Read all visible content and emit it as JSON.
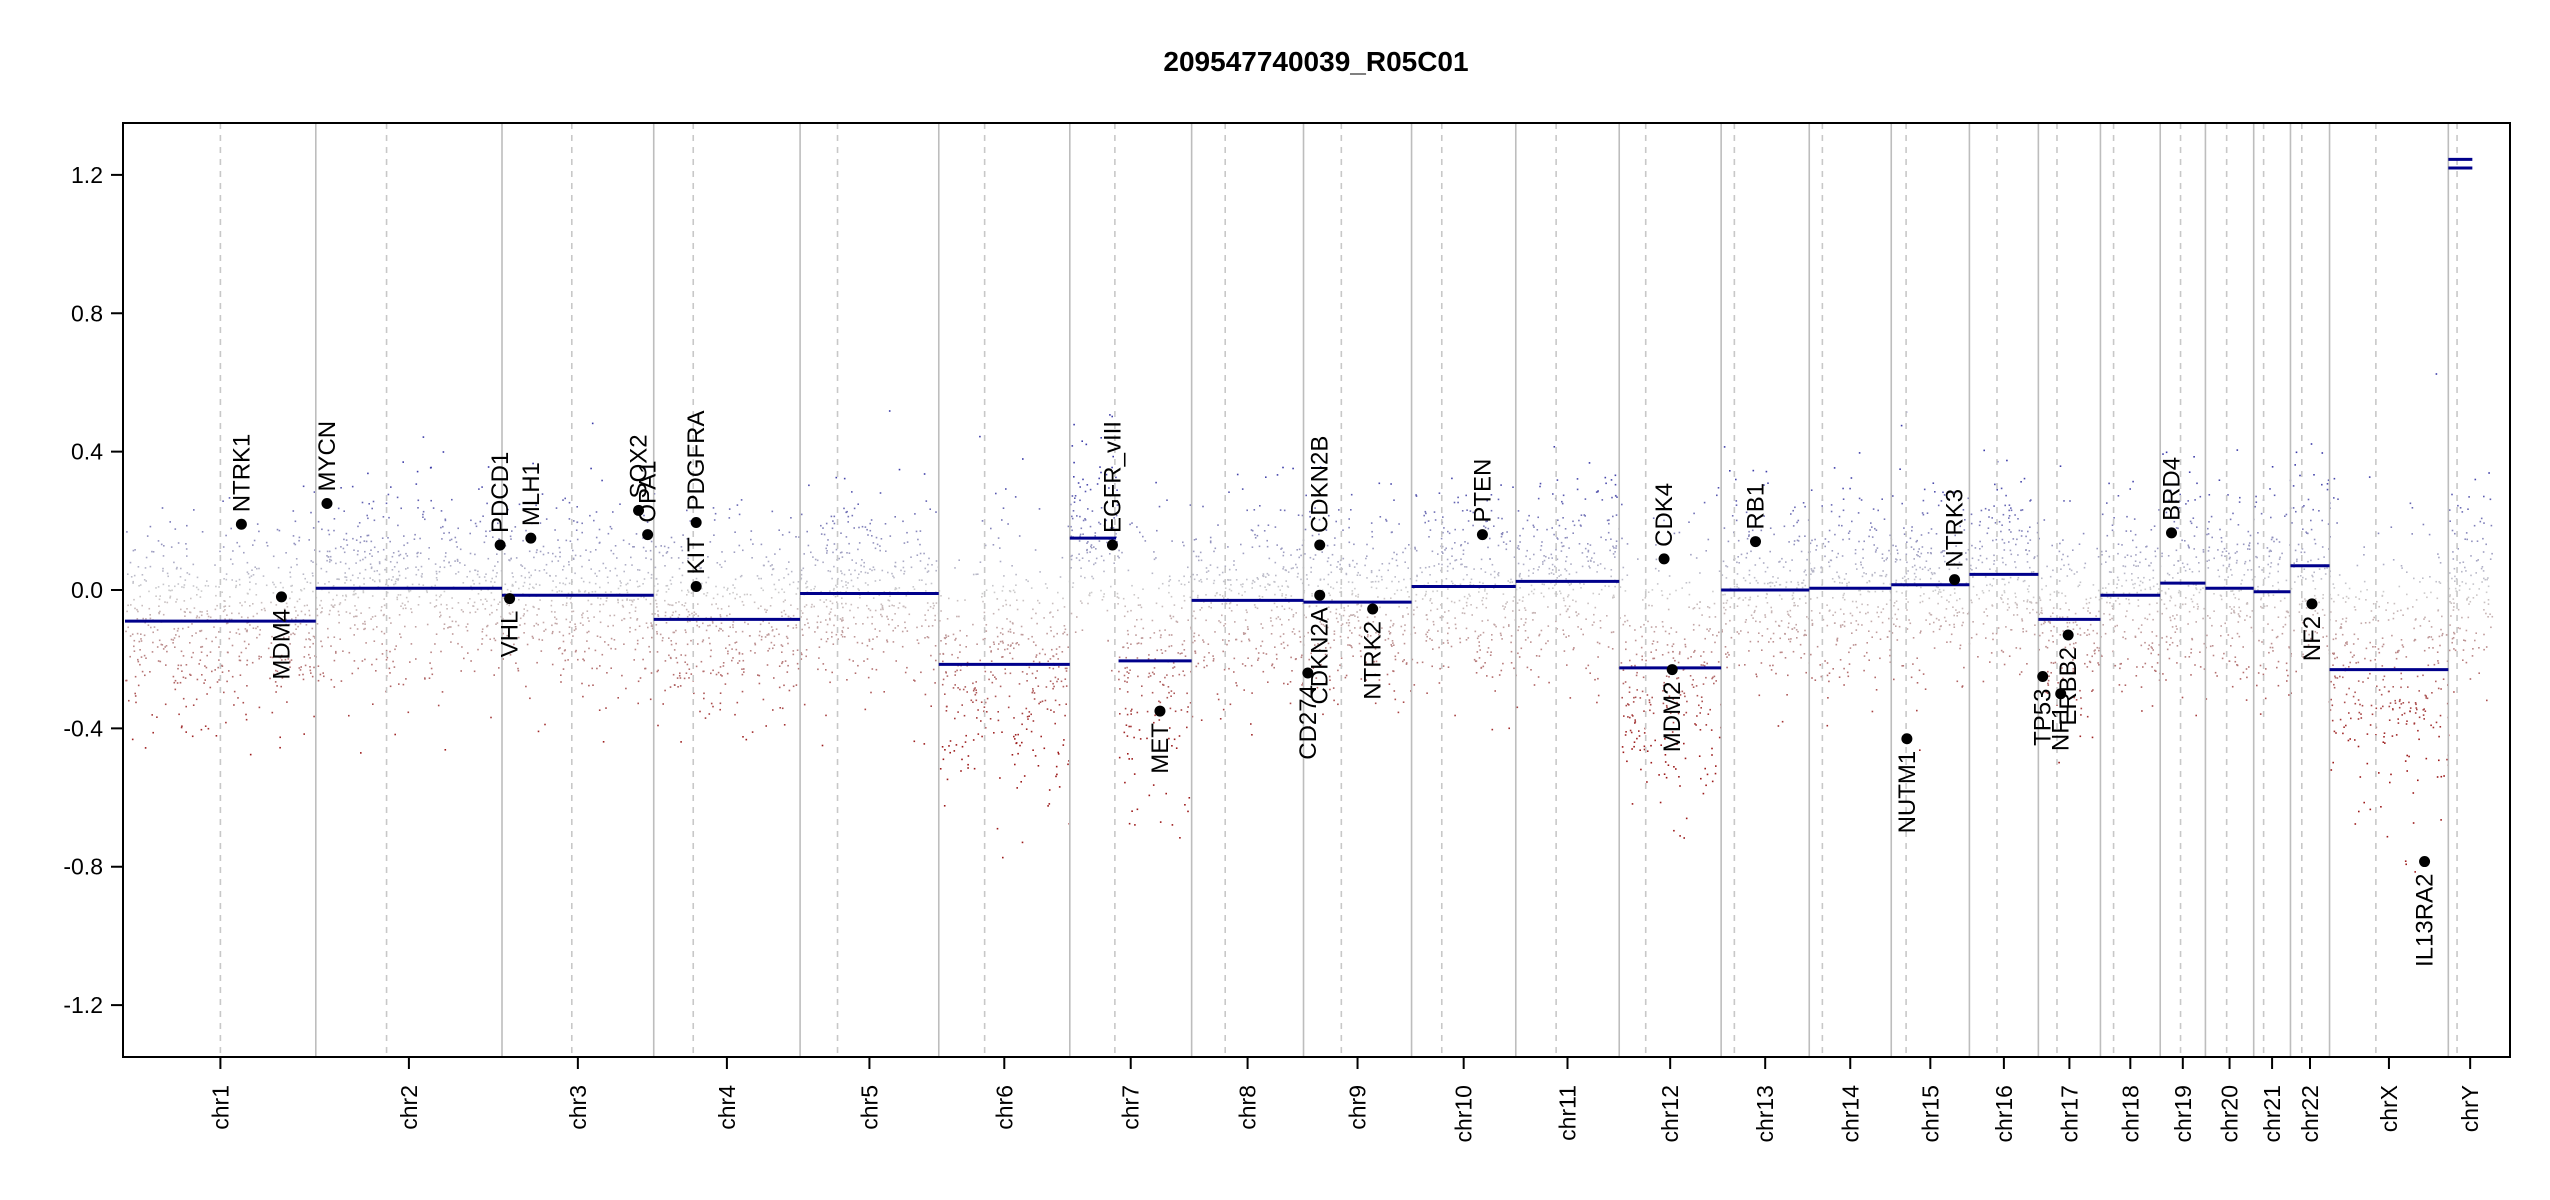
{
  "chart_data": {
    "type": "scatter",
    "title": "209547740039_R05C01",
    "xlabel": "",
    "ylabel": "",
    "ylim": [
      -1.35,
      1.35
    ],
    "yticks": [
      {
        "value": 1.2,
        "label": "1.2"
      },
      {
        "value": 0.8,
        "label": "0.8"
      },
      {
        "value": 0.4,
        "label": "0.4"
      },
      {
        "value": 0.0,
        "label": "0.0"
      },
      {
        "value": -0.4,
        "label": "-0.4"
      },
      {
        "value": -0.8,
        "label": "-0.8"
      },
      {
        "value": -1.2,
        "label": "-1.2"
      }
    ],
    "grid": false,
    "colors": {
      "gain": "#3a3aa8",
      "loss": "#9c1a1a",
      "neutral": "#c9c9c9",
      "segment": "#00008b",
      "gene": "#000000",
      "separator": "#bdbdbd"
    },
    "chromosomes": [
      {
        "name": "chr1",
        "size": 249,
        "centromere": 0.5,
        "segments": [
          {
            "from": 0.0,
            "to": 1.0,
            "value": -0.09
          }
        ]
      },
      {
        "name": "chr2",
        "size": 243,
        "centromere": 0.38,
        "segments": [
          {
            "from": 0.0,
            "to": 1.0,
            "value": 0.005
          }
        ]
      },
      {
        "name": "chr3",
        "size": 198,
        "centromere": 0.46,
        "segments": [
          {
            "from": 0.0,
            "to": 1.0,
            "value": -0.015
          }
        ]
      },
      {
        "name": "chr4",
        "size": 191,
        "centromere": 0.27,
        "segments": [
          {
            "from": 0.0,
            "to": 1.0,
            "value": -0.085
          }
        ]
      },
      {
        "name": "chr5",
        "size": 181,
        "centromere": 0.27,
        "segments": [
          {
            "from": 0.0,
            "to": 1.0,
            "value": -0.01
          }
        ]
      },
      {
        "name": "chr6",
        "size": 171,
        "centromere": 0.35,
        "segments": [
          {
            "from": 0.0,
            "to": 1.0,
            "value": -0.215
          }
        ]
      },
      {
        "name": "chr7",
        "size": 159,
        "centromere": 0.37,
        "segments": [
          {
            "from": 0.0,
            "to": 0.38,
            "value": 0.15
          },
          {
            "from": 0.4,
            "to": 1.0,
            "value": -0.205
          }
        ]
      },
      {
        "name": "chr8",
        "size": 146,
        "centromere": 0.3,
        "segments": [
          {
            "from": 0.0,
            "to": 1.0,
            "value": -0.03
          }
        ]
      },
      {
        "name": "chr9",
        "size": 141,
        "centromere": 0.35,
        "segments": [
          {
            "from": 0.0,
            "to": 1.0,
            "value": -0.035
          }
        ]
      },
      {
        "name": "chr10",
        "size": 136,
        "centromere": 0.29,
        "segments": [
          {
            "from": 0.0,
            "to": 1.0,
            "value": 0.01
          }
        ]
      },
      {
        "name": "chr11",
        "size": 135,
        "centromere": 0.39,
        "segments": [
          {
            "from": 0.0,
            "to": 1.0,
            "value": 0.025
          }
        ]
      },
      {
        "name": "chr12",
        "size": 133,
        "centromere": 0.26,
        "segments": [
          {
            "from": 0.0,
            "to": 1.0,
            "value": -0.225
          }
        ]
      },
      {
        "name": "chr13",
        "size": 115,
        "centromere": 0.15,
        "segments": [
          {
            "from": 0.0,
            "to": 1.0,
            "value": 0.0
          }
        ]
      },
      {
        "name": "chr14",
        "size": 107,
        "centromere": 0.16,
        "segments": [
          {
            "from": 0.0,
            "to": 1.0,
            "value": 0.005
          }
        ]
      },
      {
        "name": "chr15",
        "size": 102,
        "centromere": 0.19,
        "segments": [
          {
            "from": 0.0,
            "to": 1.0,
            "value": 0.015
          }
        ]
      },
      {
        "name": "chr16",
        "size": 90,
        "centromere": 0.4,
        "segments": [
          {
            "from": 0.0,
            "to": 1.0,
            "value": 0.045
          }
        ]
      },
      {
        "name": "chr17",
        "size": 81,
        "centromere": 0.3,
        "segments": [
          {
            "from": 0.0,
            "to": 1.0,
            "value": -0.085
          }
        ]
      },
      {
        "name": "chr18",
        "size": 78,
        "centromere": 0.22,
        "segments": [
          {
            "from": 0.0,
            "to": 1.0,
            "value": -0.015
          }
        ]
      },
      {
        "name": "chr19",
        "size": 59,
        "centromere": 0.45,
        "segments": [
          {
            "from": 0.0,
            "to": 1.0,
            "value": 0.02
          }
        ]
      },
      {
        "name": "chr20",
        "size": 63,
        "centromere": 0.44,
        "segments": [
          {
            "from": 0.0,
            "to": 1.0,
            "value": 0.005
          }
        ]
      },
      {
        "name": "chr21",
        "size": 48,
        "centromere": 0.27,
        "segments": [
          {
            "from": 0.0,
            "to": 1.0,
            "value": -0.005
          }
        ]
      },
      {
        "name": "chr22",
        "size": 51,
        "centromere": 0.29,
        "segments": [
          {
            "from": 0.0,
            "to": 1.0,
            "value": 0.07
          }
        ]
      },
      {
        "name": "chrX",
        "size": 155,
        "centromere": 0.39,
        "segments": [
          {
            "from": 0.0,
            "to": 1.0,
            "value": -0.23
          }
        ]
      },
      {
        "name": "chrY",
        "size": 57,
        "centromere": 0.2,
        "segments": [
          {
            "from": 0.0,
            "to": 0.55,
            "value": 1.22
          },
          {
            "from": 0.0,
            "to": 0.55,
            "value": 1.245
          }
        ]
      }
    ],
    "genes": [
      {
        "name": "NTRK1",
        "chr": "chr1",
        "pos": 0.61,
        "value": 0.19,
        "label": "above"
      },
      {
        "name": "MDM4",
        "chr": "chr1",
        "pos": 0.82,
        "value": -0.02,
        "label": "below"
      },
      {
        "name": "MYCN",
        "chr": "chr2",
        "pos": 0.06,
        "value": 0.25,
        "label": "above"
      },
      {
        "name": "PDCD1",
        "chr": "chr2",
        "pos": 0.99,
        "value": 0.13,
        "label": "above"
      },
      {
        "name": "VHL",
        "chr": "chr3",
        "pos": 0.05,
        "value": -0.025,
        "label": "below"
      },
      {
        "name": "MLH1",
        "chr": "chr3",
        "pos": 0.19,
        "value": 0.15,
        "label": "above"
      },
      {
        "name": "SOX2",
        "chr": "chr3",
        "pos": 0.9,
        "value": 0.23,
        "label": "above"
      },
      {
        "name": "OPA1",
        "chr": "chr3",
        "pos": 0.96,
        "value": 0.16,
        "label": "above"
      },
      {
        "name": "KIT",
        "chr": "chr4",
        "pos": 0.29,
        "value": 0.01,
        "label": "above"
      },
      {
        "name": "PDGFRA",
        "chr": "chr4",
        "pos": 0.29,
        "value": 0.195,
        "label": "above"
      },
      {
        "name": "EGFR_vIII",
        "chr": "chr7",
        "pos": 0.35,
        "value": 0.13,
        "label": "above"
      },
      {
        "name": "MET",
        "chr": "chr7",
        "pos": 0.74,
        "value": -0.35,
        "label": "below"
      },
      {
        "name": "CD274",
        "chr": "chr9",
        "pos": 0.04,
        "value": -0.24,
        "label": "below"
      },
      {
        "name": "CDKN2B",
        "chr": "chr9",
        "pos": 0.15,
        "value": 0.13,
        "label": "above"
      },
      {
        "name": "CDKN2A",
        "chr": "chr9",
        "pos": 0.15,
        "value": -0.015,
        "label": "below"
      },
      {
        "name": "NTRK2",
        "chr": "chr9",
        "pos": 0.64,
        "value": -0.055,
        "label": "below"
      },
      {
        "name": "PTEN",
        "chr": "chr10",
        "pos": 0.68,
        "value": 0.16,
        "label": "above"
      },
      {
        "name": "CDK4",
        "chr": "chr12",
        "pos": 0.44,
        "value": 0.09,
        "label": "above"
      },
      {
        "name": "MDM2",
        "chr": "chr12",
        "pos": 0.52,
        "value": -0.23,
        "label": "below"
      },
      {
        "name": "RB1",
        "chr": "chr13",
        "pos": 0.39,
        "value": 0.14,
        "label": "above"
      },
      {
        "name": "NUTM1",
        "chr": "chr15",
        "pos": 0.2,
        "value": -0.43,
        "label": "below"
      },
      {
        "name": "NTRK3",
        "chr": "chr15",
        "pos": 0.81,
        "value": 0.03,
        "label": "above"
      },
      {
        "name": "TP53",
        "chr": "chr17",
        "pos": 0.07,
        "value": -0.25,
        "label": "below"
      },
      {
        "name": "NF1",
        "chr": "chr17",
        "pos": 0.36,
        "value": -0.3,
        "label": "below"
      },
      {
        "name": "ERBB2",
        "chr": "chr17",
        "pos": 0.48,
        "value": -0.13,
        "label": "below"
      },
      {
        "name": "BRD4",
        "chr": "chr19",
        "pos": 0.25,
        "value": 0.165,
        "label": "above"
      },
      {
        "name": "NF2",
        "chr": "chr22",
        "pos": 0.55,
        "value": -0.04,
        "label": "below"
      },
      {
        "name": "IL13RA2",
        "chr": "chrX",
        "pos": 0.8,
        "value": -0.785,
        "label": "below"
      }
    ]
  }
}
